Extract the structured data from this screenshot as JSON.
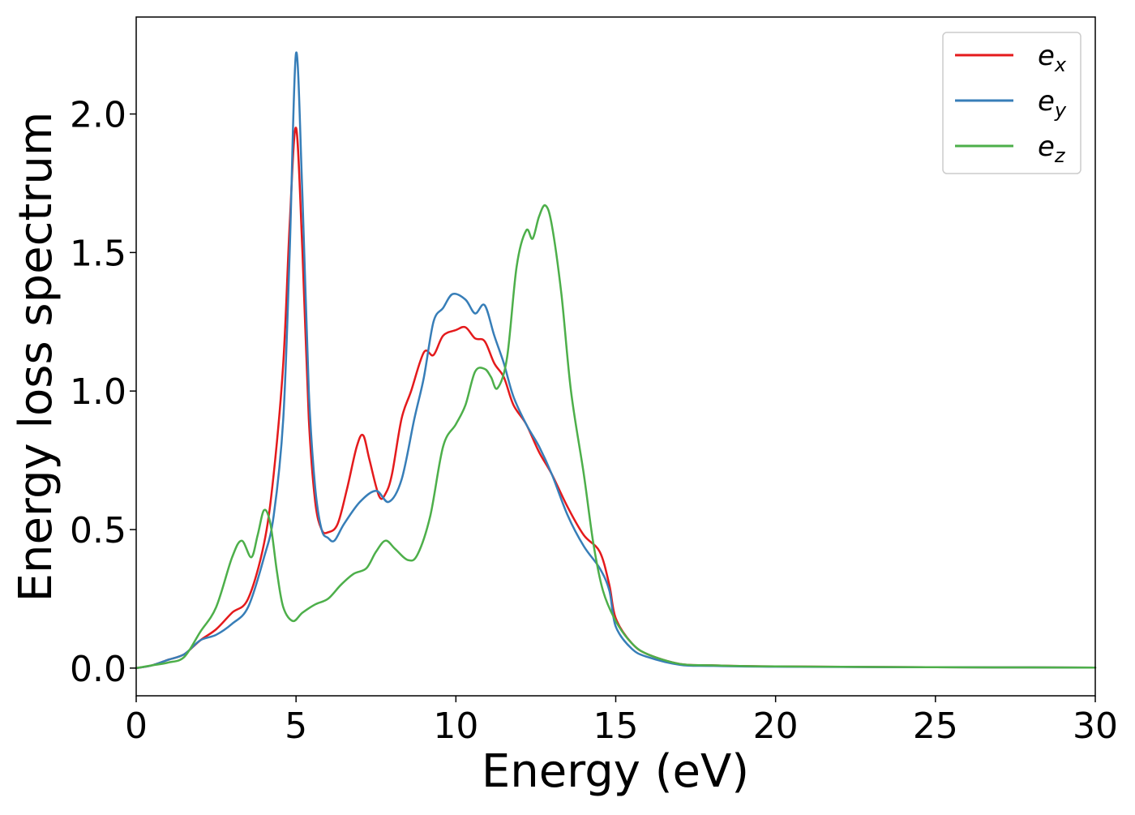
{
  "chart_data": {
    "type": "line",
    "title": "",
    "xlabel": "Energy (eV)",
    "ylabel": "Energy loss spectrum",
    "xlim": [
      0,
      30
    ],
    "ylim": [
      -0.1,
      2.35
    ],
    "xticks": [
      0,
      5,
      10,
      15,
      20,
      25,
      30
    ],
    "xtick_labels": [
      "0",
      "5",
      "10",
      "15",
      "20",
      "25",
      "30"
    ],
    "yticks": [
      0.0,
      0.5,
      1.0,
      1.5,
      2.0
    ],
    "ytick_labels": [
      "0.0",
      "0.5",
      "1.0",
      "1.5",
      "2.0"
    ],
    "grid": false,
    "legend_position": "top-right",
    "series": [
      {
        "name": "e_x",
        "label_main": "e",
        "label_sub": "x",
        "color": "#e41a1c",
        "points": [
          [
            0,
            0
          ],
          [
            0.5,
            0.01
          ],
          [
            1,
            0.03
          ],
          [
            1.5,
            0.05
          ],
          [
            2,
            0.1
          ],
          [
            2.5,
            0.14
          ],
          [
            3,
            0.2
          ],
          [
            3.5,
            0.25
          ],
          [
            4,
            0.45
          ],
          [
            4.3,
            0.7
          ],
          [
            4.6,
            1.1
          ],
          [
            4.8,
            1.6
          ],
          [
            5.0,
            1.95
          ],
          [
            5.2,
            1.5
          ],
          [
            5.4,
            0.9
          ],
          [
            5.6,
            0.6
          ],
          [
            5.8,
            0.5
          ],
          [
            6.0,
            0.49
          ],
          [
            6.3,
            0.52
          ],
          [
            6.6,
            0.65
          ],
          [
            6.9,
            0.8
          ],
          [
            7.1,
            0.84
          ],
          [
            7.3,
            0.75
          ],
          [
            7.6,
            0.62
          ],
          [
            7.8,
            0.63
          ],
          [
            8.0,
            0.7
          ],
          [
            8.3,
            0.9
          ],
          [
            8.6,
            1.0
          ],
          [
            9.0,
            1.14
          ],
          [
            9.3,
            1.13
          ],
          [
            9.6,
            1.2
          ],
          [
            10.0,
            1.22
          ],
          [
            10.3,
            1.23
          ],
          [
            10.6,
            1.19
          ],
          [
            10.9,
            1.18
          ],
          [
            11.2,
            1.1
          ],
          [
            11.5,
            1.05
          ],
          [
            11.8,
            0.95
          ],
          [
            12.2,
            0.88
          ],
          [
            12.6,
            0.78
          ],
          [
            13.0,
            0.7
          ],
          [
            13.5,
            0.58
          ],
          [
            14.0,
            0.48
          ],
          [
            14.5,
            0.42
          ],
          [
            14.8,
            0.3
          ],
          [
            15.0,
            0.18
          ],
          [
            15.5,
            0.09
          ],
          [
            16.0,
            0.05
          ],
          [
            17.0,
            0.015
          ],
          [
            18,
            0.01
          ],
          [
            20,
            0.006
          ],
          [
            25,
            0.003
          ],
          [
            30,
            0.002
          ]
        ]
      },
      {
        "name": "e_y",
        "label_main": "e",
        "label_sub": "y",
        "color": "#377eb8",
        "points": [
          [
            0,
            0
          ],
          [
            0.5,
            0.01
          ],
          [
            1,
            0.03
          ],
          [
            1.5,
            0.05
          ],
          [
            2,
            0.1
          ],
          [
            2.5,
            0.12
          ],
          [
            3,
            0.16
          ],
          [
            3.5,
            0.22
          ],
          [
            4,
            0.4
          ],
          [
            4.3,
            0.55
          ],
          [
            4.6,
            0.9
          ],
          [
            4.8,
            1.5
          ],
          [
            5.0,
            2.22
          ],
          [
            5.2,
            1.7
          ],
          [
            5.4,
            1.0
          ],
          [
            5.6,
            0.65
          ],
          [
            5.8,
            0.5
          ],
          [
            6.0,
            0.47
          ],
          [
            6.2,
            0.46
          ],
          [
            6.5,
            0.52
          ],
          [
            7.0,
            0.6
          ],
          [
            7.5,
            0.64
          ],
          [
            7.9,
            0.6
          ],
          [
            8.3,
            0.68
          ],
          [
            8.7,
            0.9
          ],
          [
            9.0,
            1.05
          ],
          [
            9.3,
            1.25
          ],
          [
            9.6,
            1.3
          ],
          [
            9.9,
            1.35
          ],
          [
            10.3,
            1.33
          ],
          [
            10.6,
            1.28
          ],
          [
            10.9,
            1.31
          ],
          [
            11.2,
            1.2
          ],
          [
            11.5,
            1.1
          ],
          [
            11.8,
            0.98
          ],
          [
            12.2,
            0.88
          ],
          [
            12.6,
            0.8
          ],
          [
            13.0,
            0.7
          ],
          [
            13.5,
            0.55
          ],
          [
            14.0,
            0.44
          ],
          [
            14.5,
            0.36
          ],
          [
            14.8,
            0.28
          ],
          [
            15.0,
            0.15
          ],
          [
            15.5,
            0.07
          ],
          [
            16.0,
            0.04
          ],
          [
            17.0,
            0.012
          ],
          [
            18,
            0.008
          ],
          [
            20,
            0.005
          ],
          [
            25,
            0.003
          ],
          [
            30,
            0.002
          ]
        ]
      },
      {
        "name": "e_z",
        "label_main": "e",
        "label_sub": "z",
        "color": "#4daf4a",
        "points": [
          [
            0,
            0
          ],
          [
            0.5,
            0.01
          ],
          [
            1,
            0.02
          ],
          [
            1.5,
            0.04
          ],
          [
            2,
            0.13
          ],
          [
            2.5,
            0.22
          ],
          [
            3.0,
            0.4
          ],
          [
            3.3,
            0.46
          ],
          [
            3.6,
            0.4
          ],
          [
            3.8,
            0.48
          ],
          [
            4.0,
            0.57
          ],
          [
            4.2,
            0.52
          ],
          [
            4.4,
            0.35
          ],
          [
            4.6,
            0.22
          ],
          [
            4.9,
            0.17
          ],
          [
            5.2,
            0.2
          ],
          [
            5.6,
            0.23
          ],
          [
            6.0,
            0.25
          ],
          [
            6.4,
            0.3
          ],
          [
            6.8,
            0.34
          ],
          [
            7.2,
            0.36
          ],
          [
            7.5,
            0.42
          ],
          [
            7.8,
            0.46
          ],
          [
            8.1,
            0.43
          ],
          [
            8.5,
            0.39
          ],
          [
            8.8,
            0.41
          ],
          [
            9.2,
            0.55
          ],
          [
            9.6,
            0.8
          ],
          [
            10.0,
            0.88
          ],
          [
            10.3,
            0.95
          ],
          [
            10.6,
            1.07
          ],
          [
            10.9,
            1.08
          ],
          [
            11.1,
            1.05
          ],
          [
            11.3,
            1.01
          ],
          [
            11.6,
            1.12
          ],
          [
            11.9,
            1.45
          ],
          [
            12.2,
            1.58
          ],
          [
            12.4,
            1.55
          ],
          [
            12.6,
            1.63
          ],
          [
            12.8,
            1.67
          ],
          [
            13.0,
            1.6
          ],
          [
            13.3,
            1.35
          ],
          [
            13.6,
            1.0
          ],
          [
            14.0,
            0.7
          ],
          [
            14.3,
            0.45
          ],
          [
            14.6,
            0.28
          ],
          [
            15.0,
            0.17
          ],
          [
            15.5,
            0.09
          ],
          [
            16.0,
            0.05
          ],
          [
            17.0,
            0.015
          ],
          [
            18,
            0.01
          ],
          [
            20,
            0.006
          ],
          [
            25,
            0.003
          ],
          [
            30,
            0.002
          ]
        ]
      }
    ]
  }
}
